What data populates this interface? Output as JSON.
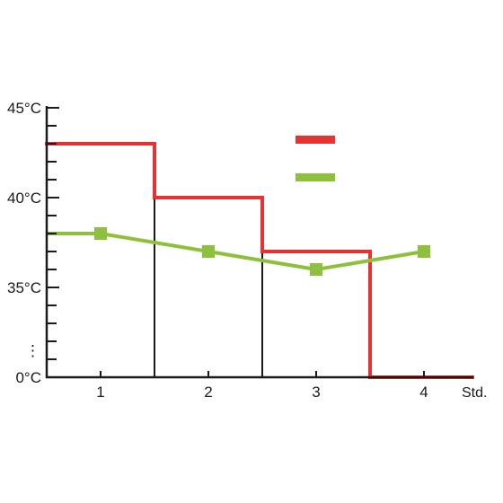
{
  "chart_data": {
    "type": "line",
    "x_unit_label": "Std.",
    "x_ticks": [
      "1",
      "2",
      "3",
      "4"
    ],
    "y_ticks": [
      {
        "label": "0°C",
        "value": 0
      },
      {
        "label": "35°C",
        "value": 35
      },
      {
        "label": "40°C",
        "value": 40
      },
      {
        "label": "45°C",
        "value": 45
      }
    ],
    "y_axis_break": true,
    "y_axis_break_symbol": "⋮",
    "grid": false,
    "legend_position": "top-right",
    "series": [
      {
        "style": "step",
        "color": "#e63232",
        "steps": [
          {
            "x_from": 0.5,
            "x_to": 1.5,
            "y": 43
          },
          {
            "x_from": 1.5,
            "x_to": 2.5,
            "y": 40
          },
          {
            "x_from": 2.5,
            "x_to": 3.5,
            "y": 37
          },
          {
            "x_from": 3.5,
            "x_to": 4.45,
            "y": 0
          }
        ]
      },
      {
        "style": "line-markers",
        "color": "#8dc03c",
        "x": [
          0.5,
          1,
          2,
          3,
          4
        ],
        "y": [
          38,
          38,
          37,
          36,
          37
        ]
      }
    ]
  }
}
